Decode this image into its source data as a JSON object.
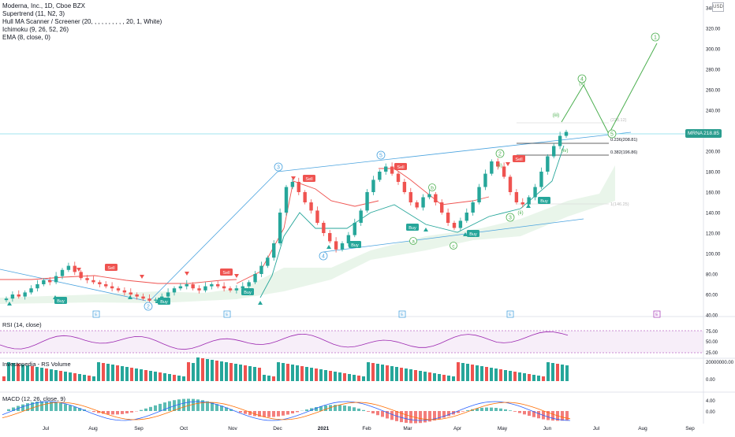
{
  "legend": {
    "title": "Moderna, Inc., 1D, Cboe BZX",
    "indicators": [
      "Supertrend (11, N2, 3)",
      "Hull MA Scanner / Screener (20, , , , , , , , , , 20, 1, White)",
      "Ichimoku (9, 26, 52, 26)",
      "EMA (8, close, 0)"
    ]
  },
  "currency": "USD",
  "last_price": {
    "symbol": "MRNA",
    "value": "218.85"
  },
  "price_axis_labels": [
    "340.00",
    "320.00",
    "300.00",
    "280.00",
    "260.00",
    "240.00",
    "220.00",
    "200.00",
    "180.00",
    "160.00",
    "140.00",
    "120.00",
    "100.00",
    "80.00",
    "60.00",
    "40.00"
  ],
  "fib_labels": [
    "0.236(208.81)",
    "0.382(196.86)",
    "1(146.25)",
    "(228.12)"
  ],
  "time_labels": [
    "Jul",
    "Aug",
    "Sep",
    "Oct",
    "Nov",
    "Dec",
    "2021",
    "Feb",
    "Mar",
    "Apr",
    "May",
    "Jun",
    "Jul",
    "Aug",
    "Sep"
  ],
  "event_markers": [
    "E",
    "E",
    "E",
    "E",
    "E"
  ],
  "signals": {
    "buy": [
      "Buy",
      "Buy",
      "Buy",
      "Buy",
      "Buy",
      "Buy",
      "Buy"
    ],
    "sell": [
      "Sell",
      "Sell",
      "Sell",
      "Sell",
      "Sell"
    ]
  },
  "waves": {
    "primary": [
      "2",
      "3",
      "4",
      "5",
      "1",
      "2",
      "3",
      "4",
      "5"
    ],
    "abc": [
      "a",
      "b",
      "c"
    ],
    "minor": [
      "(i)",
      "(ii)",
      "(iii)",
      "(iv)",
      "(v)"
    ]
  },
  "rsi": {
    "label": "RSI (14, close)",
    "axis": [
      "75.00",
      "50.00",
      "25.00"
    ]
  },
  "volume": {
    "label": "Investopedia - RS Volume",
    "axis": [
      "20000000.00",
      "0.00"
    ]
  },
  "macd": {
    "label": "MACD (12, 26, close, 9)",
    "axis": [
      "4.00",
      "0.00"
    ]
  },
  "colors": {
    "up": "#26a69a",
    "down": "#ef5350",
    "wave": "#4caf50",
    "channel": "#4aa3df",
    "rsi": "#9c27b0",
    "macd": "#2962ff",
    "signal": "#ff6d00"
  },
  "chart_data": {
    "type": "candlestick",
    "title": "Moderna, Inc., 1D, Cboe BZX",
    "ylim": [
      40,
      340
    ],
    "close": [
      56,
      60,
      58,
      62,
      66,
      70,
      74,
      72,
      78,
      84,
      88,
      82,
      76,
      74,
      72,
      70,
      68,
      66,
      64,
      62,
      60,
      58,
      56,
      54,
      55,
      58,
      62,
      66,
      68,
      70,
      66,
      64,
      68,
      70,
      68,
      66,
      64,
      66,
      68,
      72,
      80,
      88,
      96,
      110,
      140,
      165,
      170,
      160,
      150,
      142,
      130,
      120,
      112,
      104,
      110,
      118,
      130,
      142,
      160,
      172,
      180,
      185,
      178,
      170,
      160,
      150,
      145,
      155,
      158,
      150,
      140,
      130,
      125,
      132,
      140,
      150,
      165,
      178,
      190,
      185,
      175,
      160,
      150,
      148,
      155,
      165,
      180,
      195,
      205,
      215,
      218.85
    ]
  }
}
